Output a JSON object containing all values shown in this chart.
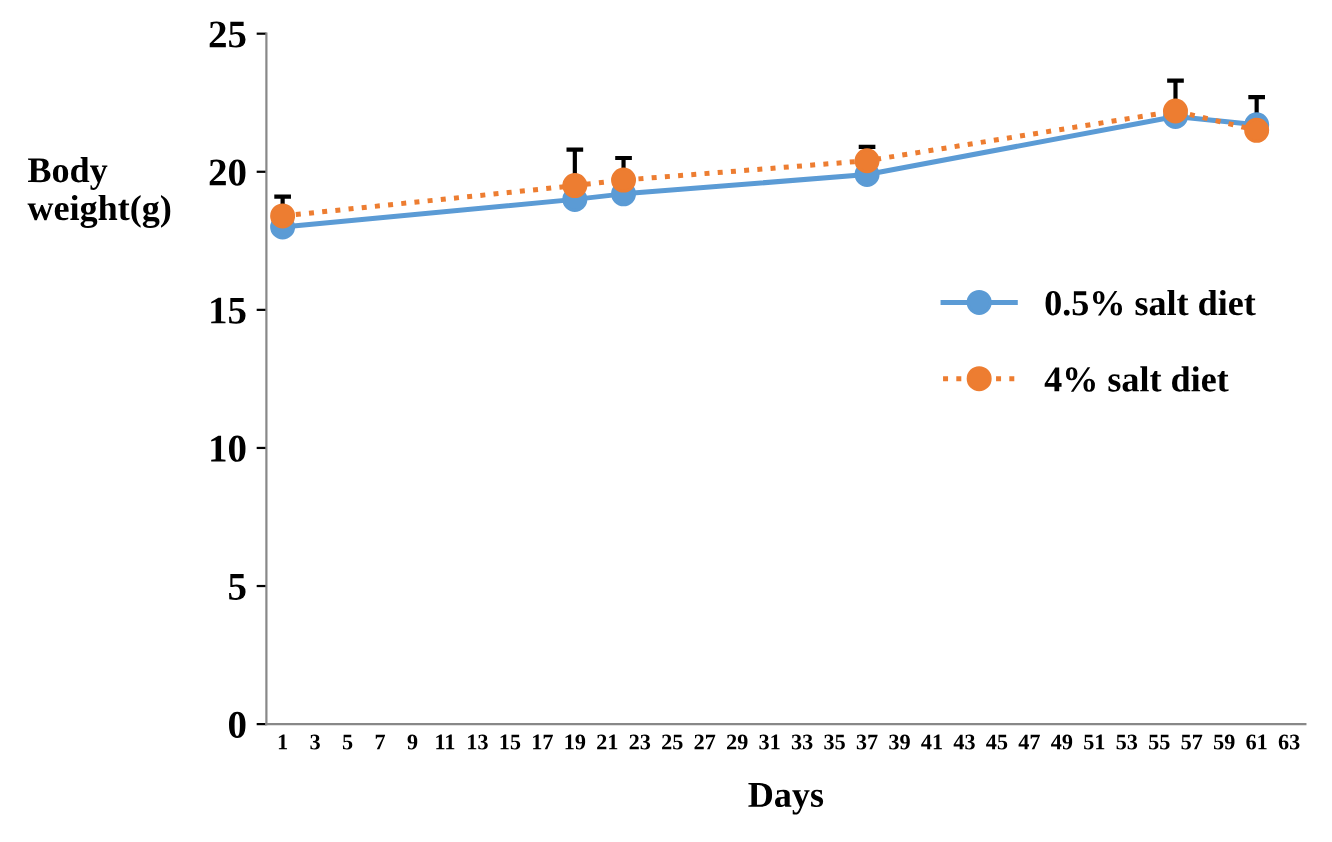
{
  "chart_data": {
    "type": "line",
    "xlabel": "Days",
    "ylabel": "Body\nweight(g)",
    "x": [
      1,
      19,
      22,
      37,
      56,
      61
    ],
    "xlim": [
      0,
      64
    ],
    "xticks": [
      1,
      3,
      5,
      7,
      9,
      11,
      13,
      15,
      17,
      19,
      21,
      23,
      25,
      27,
      29,
      31,
      33,
      35,
      37,
      39,
      41,
      43,
      45,
      47,
      49,
      51,
      53,
      55,
      57,
      59,
      61,
      63
    ],
    "ylim": [
      0,
      25
    ],
    "yticks": [
      0,
      5,
      10,
      15,
      20,
      25
    ],
    "grid": false,
    "legend": "right",
    "marker": "circle",
    "series": [
      {
        "name": "0.5% salt diet",
        "color": "#5b9bd5",
        "line_style": "solid",
        "values": [
          18.0,
          19.0,
          19.2,
          19.9,
          22.0,
          21.7
        ]
      },
      {
        "name": "4% salt diet",
        "color": "#ed7d31",
        "line_style": "dotted",
        "values": [
          18.4,
          19.5,
          19.7,
          20.4,
          22.2,
          21.5
        ],
        "errors": [
          [
            18.4,
            19.1
          ],
          [
            19.5,
            20.8
          ],
          [
            19.7,
            20.5
          ],
          [
            20.4,
            20.9
          ],
          [
            22.2,
            23.3
          ],
          [
            21.5,
            22.7
          ]
        ]
      }
    ]
  }
}
